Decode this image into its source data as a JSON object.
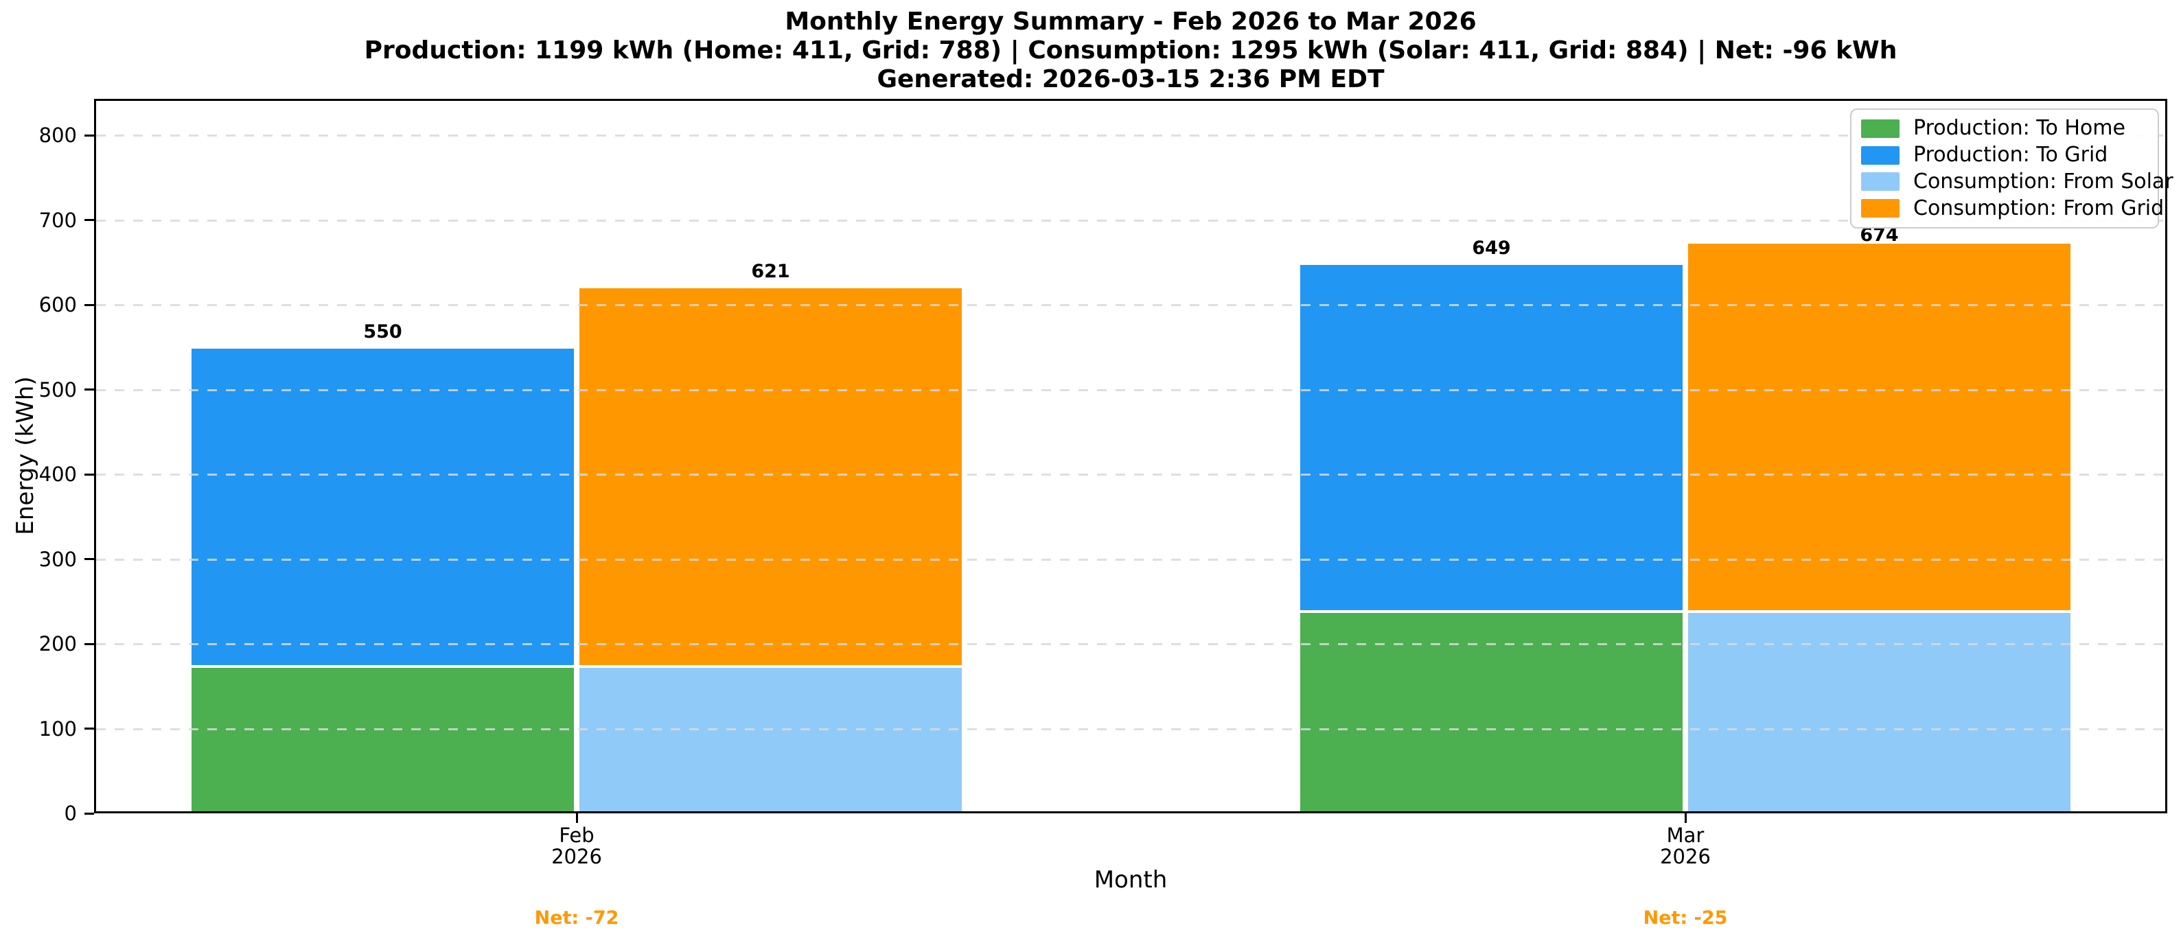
{
  "header": {
    "title": "Monthly Energy Summary - Feb 2026 to Mar 2026",
    "subtitle": "Production: 1199 kWh (Home: 411, Grid: 788) | Consumption: 1295 kWh (Solar: 411, Grid: 884) | Net: -96 kWh",
    "generated": "Generated: 2026-03-15 2:36 PM EDT"
  },
  "chart_data": {
    "type": "bar",
    "stacked": true,
    "title": "Monthly Energy Summary - Feb 2026 to Mar 2026",
    "xlabel": "Month",
    "ylabel": "Energy (kWh)",
    "categories": [
      "Feb\n2026",
      "Mar\n2026"
    ],
    "series": [
      {
        "name": "Production: To Home",
        "group": "production",
        "color": "#4CAF50",
        "values": [
          173,
          238
        ]
      },
      {
        "name": "Production: To Grid",
        "group": "production",
        "color": "#2196F3",
        "values": [
          377,
          411
        ]
      },
      {
        "name": "Consumption: From Solar",
        "group": "consumption",
        "color": "#90CAF9",
        "values": [
          173,
          238
        ]
      },
      {
        "name": "Consumption: From Grid",
        "group": "consumption",
        "color": "#FF9800",
        "values": [
          448,
          436
        ]
      }
    ],
    "bar_totals": {
      "production": [
        550,
        649
      ],
      "consumption": [
        621,
        674
      ]
    },
    "bar_total_labels": {
      "production": [
        "550",
        "649"
      ],
      "consumption": [
        "621",
        "674"
      ]
    },
    "net_labels": [
      "Net: -72",
      "Net: -25"
    ],
    "yticks": [
      0,
      100,
      200,
      300,
      400,
      500,
      600,
      700,
      800
    ],
    "ylim": [
      0,
      843
    ],
    "grid": "horizontal-dashed",
    "legend_position": "upper-right",
    "colors": {
      "net_label": "#FF9800",
      "grid": "#d9d9d9",
      "frame": "#000000",
      "legend_border": "#cccccc"
    }
  }
}
